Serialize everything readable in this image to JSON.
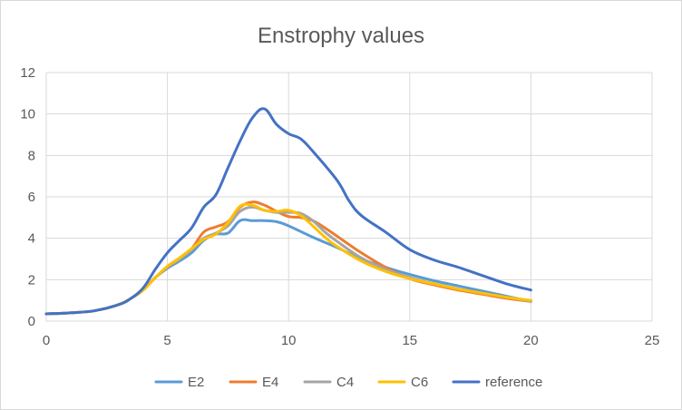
{
  "chart_data": {
    "type": "line",
    "title": "Enstrophy values",
    "xlabel": "",
    "ylabel": "",
    "xlim": [
      0,
      25
    ],
    "ylim": [
      0,
      12
    ],
    "x_ticks": [
      "0",
      "5",
      "10",
      "15",
      "20",
      "25"
    ],
    "y_ticks": [
      "0",
      "2",
      "4",
      "6",
      "8",
      "10",
      "12"
    ],
    "grid": true,
    "legend_position": "bottom",
    "series": [
      {
        "name": "E2",
        "color": "#5B9BD5",
        "points": [
          [
            0,
            0.35
          ],
          [
            1,
            0.4
          ],
          [
            2,
            0.5
          ],
          [
            3,
            0.8
          ],
          [
            3.5,
            1.1
          ],
          [
            4,
            1.5
          ],
          [
            4.5,
            2.1
          ],
          [
            5,
            2.55
          ],
          [
            5.5,
            2.9
          ],
          [
            6,
            3.3
          ],
          [
            6.5,
            3.9
          ],
          [
            7,
            4.2
          ],
          [
            7.5,
            4.25
          ],
          [
            8,
            4.85
          ],
          [
            8.5,
            4.85
          ],
          [
            9,
            4.85
          ],
          [
            9.5,
            4.8
          ],
          [
            10,
            4.6
          ],
          [
            11,
            4.05
          ],
          [
            12,
            3.55
          ],
          [
            13,
            3.0
          ],
          [
            14,
            2.6
          ],
          [
            15,
            2.25
          ],
          [
            16,
            1.95
          ],
          [
            17,
            1.7
          ],
          [
            18,
            1.45
          ],
          [
            19,
            1.2
          ],
          [
            20,
            0.95
          ]
        ]
      },
      {
        "name": "E4",
        "color": "#ED7D31",
        "points": [
          [
            0,
            0.35
          ],
          [
            1,
            0.4
          ],
          [
            2,
            0.5
          ],
          [
            3,
            0.8
          ],
          [
            3.5,
            1.1
          ],
          [
            4,
            1.5
          ],
          [
            4.5,
            2.1
          ],
          [
            5,
            2.6
          ],
          [
            5.5,
            3.0
          ],
          [
            6,
            3.5
          ],
          [
            6.5,
            4.3
          ],
          [
            7,
            4.55
          ],
          [
            7.5,
            4.8
          ],
          [
            8,
            5.5
          ],
          [
            8.5,
            5.75
          ],
          [
            9,
            5.6
          ],
          [
            9.5,
            5.3
          ],
          [
            10,
            5.05
          ],
          [
            10.5,
            5.0
          ],
          [
            11,
            4.85
          ],
          [
            11.5,
            4.5
          ],
          [
            12,
            4.1
          ],
          [
            13,
            3.3
          ],
          [
            14,
            2.6
          ],
          [
            15,
            2.05
          ],
          [
            16,
            1.75
          ],
          [
            17,
            1.5
          ],
          [
            18,
            1.3
          ],
          [
            19,
            1.1
          ],
          [
            20,
            0.95
          ]
        ]
      },
      {
        "name": "C4",
        "color": "#A5A5A5",
        "points": [
          [
            0,
            0.35
          ],
          [
            1,
            0.4
          ],
          [
            2,
            0.5
          ],
          [
            3,
            0.8
          ],
          [
            3.5,
            1.1
          ],
          [
            4,
            1.5
          ],
          [
            4.5,
            2.1
          ],
          [
            5,
            2.6
          ],
          [
            5.5,
            3.0
          ],
          [
            6,
            3.45
          ],
          [
            6.5,
            4.0
          ],
          [
            7,
            4.25
          ],
          [
            7.5,
            4.6
          ],
          [
            8,
            5.3
          ],
          [
            8.5,
            5.5
          ],
          [
            9,
            5.35
          ],
          [
            9.5,
            5.25
          ],
          [
            10,
            5.25
          ],
          [
            10.5,
            5.2
          ],
          [
            11,
            4.85
          ],
          [
            11.5,
            4.3
          ],
          [
            12,
            3.85
          ],
          [
            13,
            3.05
          ],
          [
            14,
            2.5
          ],
          [
            15,
            2.1
          ],
          [
            16,
            1.8
          ],
          [
            17,
            1.55
          ],
          [
            18,
            1.35
          ],
          [
            19,
            1.15
          ],
          [
            20,
            0.95
          ]
        ]
      },
      {
        "name": "C6",
        "color": "#FFC000",
        "points": [
          [
            0,
            0.35
          ],
          [
            1,
            0.4
          ],
          [
            2,
            0.5
          ],
          [
            3,
            0.8
          ],
          [
            3.5,
            1.1
          ],
          [
            4,
            1.5
          ],
          [
            4.5,
            2.1
          ],
          [
            5,
            2.65
          ],
          [
            5.5,
            3.05
          ],
          [
            6,
            3.5
          ],
          [
            6.5,
            3.95
          ],
          [
            7,
            4.2
          ],
          [
            7.5,
            4.75
          ],
          [
            8,
            5.55
          ],
          [
            8.5,
            5.6
          ],
          [
            9,
            5.35
          ],
          [
            9.5,
            5.3
          ],
          [
            10,
            5.35
          ],
          [
            10.5,
            5.1
          ],
          [
            11,
            4.6
          ],
          [
            11.5,
            4.05
          ],
          [
            12,
            3.6
          ],
          [
            13,
            2.9
          ],
          [
            14,
            2.4
          ],
          [
            15,
            2.05
          ],
          [
            16,
            1.8
          ],
          [
            17,
            1.55
          ],
          [
            18,
            1.35
          ],
          [
            19,
            1.15
          ],
          [
            20,
            1.0
          ]
        ]
      },
      {
        "name": "reference",
        "color": "#4472C4",
        "points": [
          [
            0,
            0.35
          ],
          [
            1,
            0.4
          ],
          [
            2,
            0.5
          ],
          [
            3,
            0.8
          ],
          [
            3.5,
            1.1
          ],
          [
            4,
            1.6
          ],
          [
            4.5,
            2.5
          ],
          [
            5,
            3.3
          ],
          [
            5.5,
            3.9
          ],
          [
            6,
            4.5
          ],
          [
            6.5,
            5.5
          ],
          [
            7,
            6.1
          ],
          [
            7.5,
            7.4
          ],
          [
            8,
            8.7
          ],
          [
            8.5,
            9.8
          ],
          [
            9,
            10.25
          ],
          [
            9.5,
            9.5
          ],
          [
            10,
            9.05
          ],
          [
            10.5,
            8.8
          ],
          [
            11,
            8.2
          ],
          [
            12,
            6.8
          ],
          [
            12.5,
            5.8
          ],
          [
            13,
            5.1
          ],
          [
            14,
            4.3
          ],
          [
            15,
            3.45
          ],
          [
            16,
            2.95
          ],
          [
            17,
            2.6
          ],
          [
            18,
            2.2
          ],
          [
            19,
            1.8
          ],
          [
            20,
            1.5
          ]
        ]
      }
    ]
  }
}
